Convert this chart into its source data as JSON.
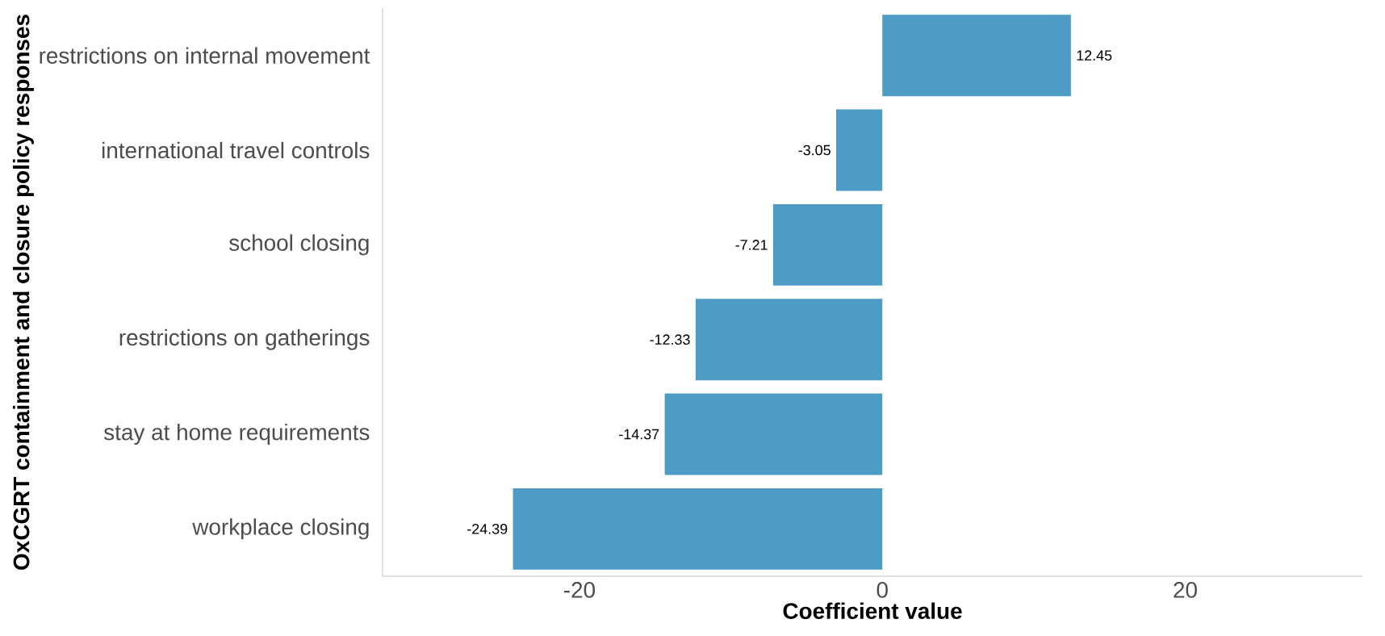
{
  "chart_data": {
    "type": "bar",
    "orientation": "horizontal",
    "xlabel": "Coefficient value",
    "ylabel": "OxCGRT containment and closure policy responses",
    "categories": [
      "restrictions on internal movement",
      "international travel controls",
      "school closing",
      "restrictions on gatherings",
      "stay at home requirements",
      "workplace closing"
    ],
    "values": [
      12.45,
      -3.05,
      -7.21,
      -12.33,
      -14.37,
      -24.39
    ],
    "color": "#4e9cc6",
    "data_labels": true,
    "xlim": [
      -33,
      31.7
    ],
    "xticks": [
      -20,
      0,
      20
    ]
  }
}
